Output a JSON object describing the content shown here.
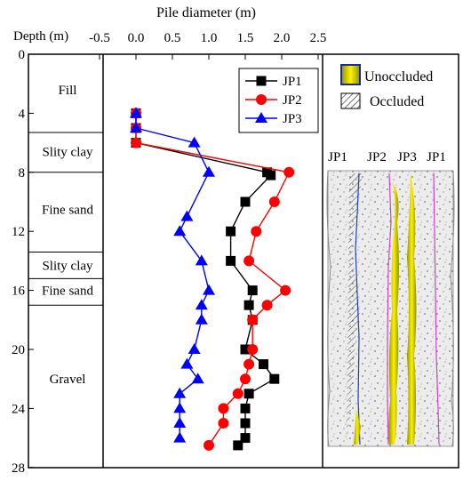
{
  "chart_data": {
    "type": "line",
    "title": "Pile diameter (m)",
    "ylabel": "Depth (m)",
    "xlim": [
      -0.5,
      2.5
    ],
    "ylim": [
      0,
      28
    ],
    "y_inverted": true,
    "x_ticks": [
      "-0.5",
      "0.0",
      "0.5",
      "1.0",
      "1.5",
      "2.0",
      "2.5"
    ],
    "x_tick_values": [
      -0.5,
      0,
      0.5,
      1,
      1.5,
      2,
      2.5
    ],
    "y_ticks": [
      "0",
      "4",
      "8",
      "12",
      "16",
      "20",
      "24",
      "28"
    ],
    "y_tick_values": [
      0,
      4,
      8,
      12,
      16,
      20,
      24,
      28
    ],
    "legend_position": "top-right",
    "series": [
      {
        "name": "JP1",
        "color": "#000000",
        "marker": "square",
        "points": [
          [
            0.0,
            4.0
          ],
          [
            0.0,
            5.0
          ],
          [
            0.0,
            6.0
          ],
          [
            1.8,
            8.0
          ],
          [
            1.85,
            8.2
          ],
          [
            1.5,
            10.0
          ],
          [
            1.3,
            12.0
          ],
          [
            1.3,
            14.0
          ],
          [
            1.6,
            16.0
          ],
          [
            1.55,
            17.0
          ],
          [
            1.6,
            18.0
          ],
          [
            1.5,
            20.0
          ],
          [
            1.75,
            21.0
          ],
          [
            1.9,
            22.0
          ],
          [
            1.55,
            23.0
          ],
          [
            1.5,
            24.0
          ],
          [
            1.5,
            25.0
          ],
          [
            1.5,
            26.0
          ],
          [
            1.4,
            26.5
          ]
        ]
      },
      {
        "name": "JP2",
        "color": "#ff0000",
        "marker": "circle",
        "points": [
          [
            0.0,
            4.0
          ],
          [
            0.0,
            5.0
          ],
          [
            0.0,
            6.0
          ],
          [
            2.1,
            8.0
          ],
          [
            1.9,
            10.0
          ],
          [
            1.65,
            12.0
          ],
          [
            1.55,
            14.0
          ],
          [
            2.05,
            16.0
          ],
          [
            1.8,
            17.0
          ],
          [
            1.6,
            18.0
          ],
          [
            1.6,
            20.0
          ],
          [
            1.55,
            21.0
          ],
          [
            1.5,
            22.0
          ],
          [
            1.4,
            23.0
          ],
          [
            1.2,
            24.0
          ],
          [
            1.2,
            25.0
          ],
          [
            1.0,
            26.5
          ]
        ]
      },
      {
        "name": "JP3",
        "color": "#0000ff",
        "marker": "triangle",
        "points": [
          [
            0.0,
            4.0
          ],
          [
            0.0,
            5.0
          ],
          [
            0.8,
            6.0
          ],
          [
            1.0,
            8.0
          ],
          [
            0.7,
            11.0
          ],
          [
            0.6,
            12.0
          ],
          [
            0.9,
            14.0
          ],
          [
            1.0,
            16.0
          ],
          [
            0.9,
            17.0
          ],
          [
            0.9,
            18.0
          ],
          [
            0.8,
            20.0
          ],
          [
            0.7,
            21.0
          ],
          [
            0.85,
            22.0
          ],
          [
            0.6,
            23.0
          ],
          [
            0.6,
            24.0
          ],
          [
            0.6,
            25.0
          ],
          [
            0.6,
            26.0
          ]
        ]
      }
    ],
    "strata": [
      {
        "label": "Fill",
        "top": 0,
        "bottom": 5.3,
        "label_depth": 2.4
      },
      {
        "label": "Slity clay",
        "top": 5.3,
        "bottom": 8.0,
        "label_depth": 6.6
      },
      {
        "label": "Fine sand",
        "top": 8.0,
        "bottom": 13.4,
        "label_depth": 10.5
      },
      {
        "label": "Slity clay",
        "top": 13.4,
        "bottom": 15.2,
        "label_depth": 14.3
      },
      {
        "label": "Fine sand",
        "top": 15.2,
        "bottom": 17.0,
        "label_depth": 16.0
      },
      {
        "label": "Gravel",
        "top": 17.0,
        "bottom": 28,
        "label_depth": 22.0
      }
    ]
  },
  "legend_panel": {
    "unoccluded_label": "Unoccluded",
    "occluded_label": "Occluded",
    "pile_labels": [
      "JP1",
      "JP2",
      "JP3",
      "JP1"
    ],
    "colors": {
      "unoccluded": "#f2e600",
      "unoccluded_edge": "#9aa300",
      "soil": "#e6e6e6"
    }
  }
}
